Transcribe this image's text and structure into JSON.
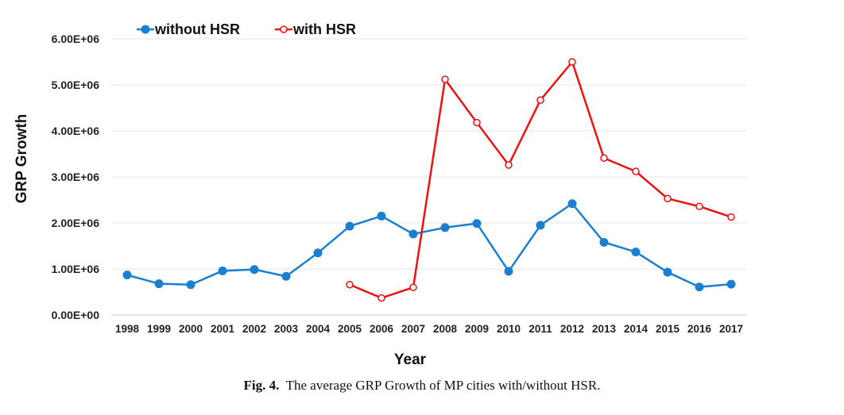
{
  "chart_data": {
    "type": "line",
    "title": "",
    "xlabel": "Year",
    "ylabel": "GRP Growth",
    "categories": [
      "1998",
      "1999",
      "2000",
      "2001",
      "2002",
      "2003",
      "2004",
      "2005",
      "2006",
      "2007",
      "2008",
      "2009",
      "2010",
      "2011",
      "2012",
      "2013",
      "2014",
      "2015",
      "2016",
      "2017"
    ],
    "ylim": [
      0,
      6000000
    ],
    "yticks": [
      "0.00E+00",
      "1.00E+06",
      "2.00E+06",
      "3.00E+06",
      "4.00E+06",
      "5.00E+06",
      "6.00E+06"
    ],
    "grid": true,
    "legend_position": "top",
    "series": [
      {
        "name": "without HSR",
        "color": "#1a7fd0",
        "marker": "filled-circle",
        "values": [
          870000,
          680000,
          660000,
          960000,
          990000,
          840000,
          1350000,
          1930000,
          2150000,
          1760000,
          1900000,
          1990000,
          950000,
          1950000,
          2420000,
          1580000,
          1370000,
          930000,
          610000,
          670000
        ]
      },
      {
        "name": "with HSR",
        "color": "#ee1111",
        "marker": "hollow-circle",
        "values": [
          null,
          null,
          null,
          null,
          null,
          null,
          null,
          660000,
          370000,
          600000,
          5120000,
          4180000,
          3260000,
          4670000,
          5500000,
          3410000,
          3120000,
          2530000,
          2360000,
          2130000
        ]
      }
    ]
  },
  "caption": {
    "label": "Fig. 4.",
    "text": "The average GRP Growth of MP cities with/without HSR."
  }
}
